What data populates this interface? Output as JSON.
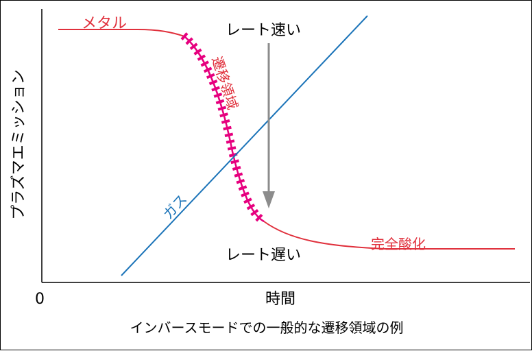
{
  "title": "インバースモードでの一般的な遷移領域の例",
  "y_axis_label": "プラズマエミッション",
  "x_axis_label": "時間",
  "x_origin_label": "0",
  "labels": {
    "metal": "メタル",
    "transition": "遷移領域",
    "oxide": "完全酸化",
    "gas": "ガス",
    "rate_fast": "レート速い",
    "rate_slow": "レート遅い"
  },
  "colors": {
    "emission_curve": "#e0303c",
    "transition_markers": "#e6007e",
    "gas_line": "#1a73b8",
    "arrow": "#8c8c8c",
    "text": "#000000",
    "red_label": "#e0303c",
    "blue_label": "#1a73b8"
  }
}
